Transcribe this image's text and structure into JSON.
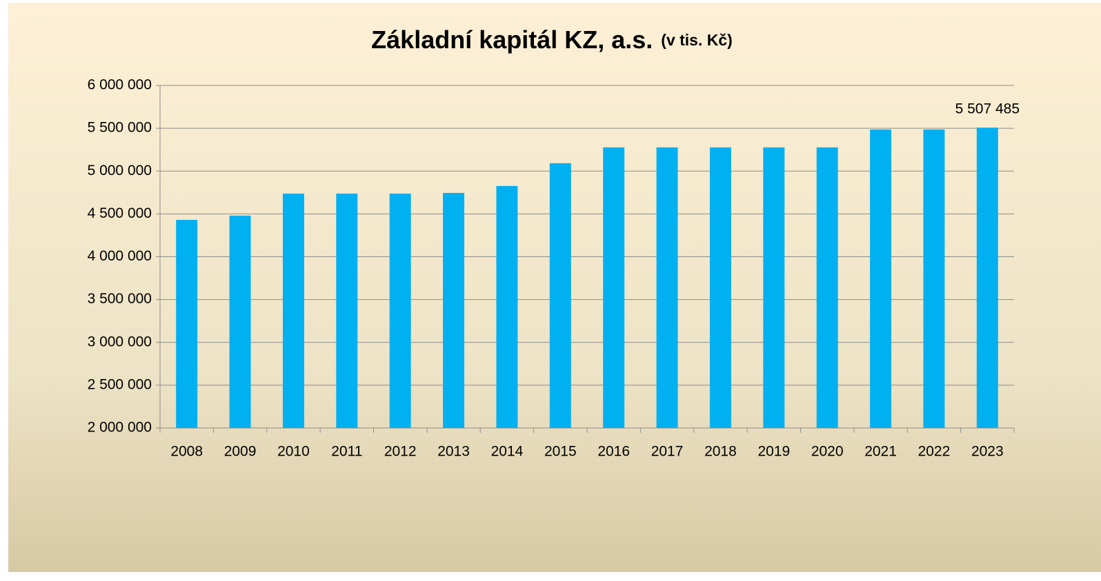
{
  "chart_data": {
    "type": "bar",
    "title": "Základní kapitál KZ, a.s.",
    "subtitle": "(v tis. Kč)",
    "categories": [
      "2008",
      "2009",
      "2010",
      "2011",
      "2012",
      "2013",
      "2014",
      "2015",
      "2016",
      "2017",
      "2018",
      "2019",
      "2020",
      "2021",
      "2022",
      "2023"
    ],
    "values": [
      4430000,
      4480000,
      4737000,
      4737000,
      4737000,
      4745000,
      4826000,
      5092000,
      5277000,
      5277000,
      5277000,
      5277000,
      5277000,
      5486000,
      5486000,
      5507485
    ],
    "value_labels": [
      null,
      null,
      null,
      null,
      null,
      null,
      null,
      null,
      null,
      null,
      null,
      null,
      null,
      null,
      null,
      "5 507 485"
    ],
    "color": "#00b0f0",
    "ylim": [
      2000000,
      6000000
    ],
    "yticks": [
      {
        "value": 2000000,
        "label": "2 000 000"
      },
      {
        "value": 2500000,
        "label": "2 500 000"
      },
      {
        "value": 3000000,
        "label": "3 000 000"
      },
      {
        "value": 3500000,
        "label": "3 500 000"
      },
      {
        "value": 4000000,
        "label": "4 000 000"
      },
      {
        "value": 4500000,
        "label": "4 500 000"
      },
      {
        "value": 5000000,
        "label": "5 000 000"
      },
      {
        "value": 5500000,
        "label": "5 500 000"
      },
      {
        "value": 6000000,
        "label": "6 000 000"
      }
    ],
    "grid": true
  }
}
